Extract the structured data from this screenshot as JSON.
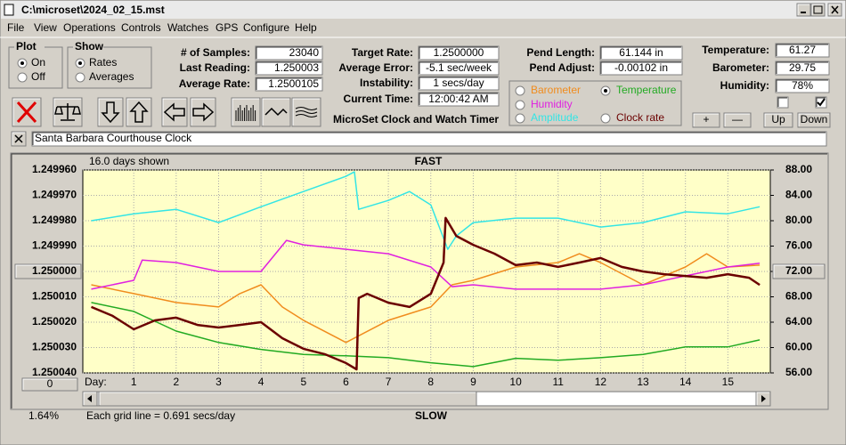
{
  "window": {
    "title": "C:\\microset\\2024_02_15.mst"
  },
  "menu": [
    "File",
    "View",
    "Operations",
    "Controls",
    "Watches",
    "GPS",
    "Configure",
    "Help"
  ],
  "plot_group": {
    "title": "Plot",
    "options": [
      "On",
      "Off"
    ]
  },
  "show_group": {
    "title": "Show",
    "options": [
      "Rates",
      "Averages"
    ]
  },
  "fields": [
    {
      "label": "# of Samples:",
      "value": "23040"
    },
    {
      "label": "Last Reading:",
      "value": "1.250003"
    },
    {
      "label": "Average Rate:",
      "value": "1.2500105"
    },
    {
      "label": "Target Rate:",
      "value": "1.2500000"
    },
    {
      "label": "Average Error:",
      "value": "-5.1 sec/week"
    },
    {
      "label": "Instability:",
      "value": "1 secs/day"
    },
    {
      "label": "Current Time:",
      "value": "12:00:42 AM"
    },
    {
      "label": "Pend Length:",
      "value": "61.144 in"
    },
    {
      "label": "Pend Adjust:",
      "value": "-0.00102 in"
    },
    {
      "label": "Temperature:",
      "value": "61.27"
    },
    {
      "label": "Barometer:",
      "value": "29.75"
    },
    {
      "label": "Humidity:",
      "value": "78%"
    }
  ],
  "buttons": [
    "+",
    "—",
    "Up",
    "Down"
  ],
  "app_name": "MicroSet Clock and Watch Timer",
  "clock_name": "Santa Barbara Courthouse Clock",
  "chart_data": {
    "type": "line",
    "title": "FAST",
    "bottom_label": "SLOW",
    "days_shown": "16.0 days shown",
    "x_label": "Day:",
    "grid_note": "Each grid line = 0.691 secs/day",
    "status": "1.64%",
    "scroll_button": "0",
    "grid": true,
    "background": "#ffffc8",
    "xlim": [
      -0.2,
      16.0
    ],
    "xticks": [
      1,
      2,
      3,
      4,
      5,
      6,
      7,
      8,
      9,
      10,
      11,
      12,
      13,
      14,
      15
    ],
    "ylim": [
      1.25004,
      1.24996
    ],
    "yticks": [
      {
        "value": 1.24996,
        "label": "1.249960"
      },
      {
        "value": 1.24997,
        "label": "1.249970"
      },
      {
        "value": 1.24998,
        "label": "1.249980"
      },
      {
        "value": 1.24999,
        "label": "1.249990"
      },
      {
        "value": 1.25,
        "label": "1.250000"
      },
      {
        "value": 1.25001,
        "label": "1.250010"
      },
      {
        "value": 1.25002,
        "label": "1.250020"
      },
      {
        "value": 1.25003,
        "label": "1.250030"
      },
      {
        "value": 1.25004,
        "label": "1.250040"
      }
    ],
    "y2lim": [
      56,
      88
    ],
    "y2ticks": [
      {
        "value": 88,
        "label": "88.00"
      },
      {
        "value": 84,
        "label": "84.00"
      },
      {
        "value": 80,
        "label": "80.00"
      },
      {
        "value": 76,
        "label": "76.00"
      },
      {
        "value": 72,
        "label": "72.00"
      },
      {
        "value": 68,
        "label": "68.00"
      },
      {
        "value": 64,
        "label": "64.00"
      },
      {
        "value": 60,
        "label": "60.00"
      },
      {
        "value": 56,
        "label": "56.00"
      }
    ],
    "series": [
      {
        "name": "Barometer",
        "color": "#f08c1e",
        "axis": "y2",
        "x": [
          0,
          1,
          2,
          3,
          3.5,
          4,
          4.5,
          5,
          6,
          7,
          8,
          8.5,
          9,
          10,
          11,
          11.5,
          12,
          13,
          14,
          14.5,
          15,
          15.75
        ],
        "values": [
          69.9,
          68.5,
          67.1,
          66.4,
          68.5,
          69.9,
          66.4,
          64.3,
          60.8,
          64.3,
          66.4,
          69.9,
          70.6,
          72.7,
          73.4,
          74.8,
          73.4,
          69.9,
          72.7,
          74.8,
          72.7,
          73.0
        ]
      },
      {
        "name": "Temperature",
        "color": "#22aa22",
        "axis": "y2",
        "x": [
          0,
          1,
          2,
          3,
          4,
          5,
          6,
          7,
          8,
          9,
          10,
          11,
          12,
          13,
          14,
          15,
          15.75
        ],
        "values": [
          67.1,
          65.7,
          62.6,
          60.8,
          59.7,
          58.9,
          58.7,
          58.4,
          57.6,
          57.0,
          58.3,
          58.0,
          58.4,
          58.9,
          60.1,
          60.1,
          61.2
        ]
      },
      {
        "name": "Humidity",
        "color": "#e020e0",
        "axis": "y2",
        "x": [
          0,
          1,
          1.2,
          2,
          3,
          4,
          4.6,
          5,
          6,
          7,
          8,
          8.5,
          9,
          10,
          11,
          12,
          13,
          14,
          15,
          15.75
        ],
        "values": [
          69.2,
          70.6,
          73.8,
          73.4,
          72.0,
          72.0,
          76.9,
          76.2,
          75.5,
          74.8,
          72.7,
          69.6,
          69.9,
          69.2,
          69.2,
          69.2,
          69.9,
          71.3,
          72.7,
          73.3
        ]
      },
      {
        "name": "Amplitude",
        "color": "#33e5e5",
        "axis": "y2",
        "x": [
          0,
          1,
          2,
          3,
          4,
          5,
          6,
          6.2,
          6.3,
          7,
          7.5,
          8,
          8.4,
          8.6,
          9,
          10,
          11,
          12,
          13,
          14,
          15,
          15.75
        ],
        "values": [
          80.0,
          81.1,
          81.8,
          79.7,
          82.2,
          84.6,
          87.0,
          87.7,
          81.8,
          83.2,
          84.6,
          82.5,
          75.5,
          77.6,
          79.7,
          80.4,
          80.4,
          79.0,
          79.7,
          81.4,
          81.1,
          82.2
        ]
      },
      {
        "name": "Clock rate",
        "color": "#6b0000",
        "x": [
          0,
          0.5,
          1,
          1.5,
          2,
          2.5,
          3,
          3.5,
          4,
          4.5,
          5,
          5.5,
          6,
          6.25,
          6.3,
          6.5,
          7,
          7.5,
          8,
          8.3,
          8.35,
          8.6,
          9,
          9.5,
          10,
          10.5,
          11,
          11.5,
          12,
          12.5,
          13,
          13.5,
          14,
          14.5,
          15,
          15.5,
          15.75
        ],
        "values": [
          1.250014,
          1.2500175,
          1.2500228,
          1.2500193,
          1.2500182,
          1.2500211,
          1.2500221,
          1.2500211,
          1.25002,
          1.2500263,
          1.2500305,
          1.2500326,
          1.2500361,
          1.2500386,
          1.2500105,
          1.2500088,
          1.2500123,
          1.250014,
          1.2500088,
          1.2499965,
          1.2499789,
          1.249986,
          1.2499895,
          1.249993,
          1.2499975,
          1.2499965,
          1.2499982,
          1.2499965,
          1.2499947,
          1.2499982,
          1.25,
          1.2500011,
          1.2500018,
          1.2500025,
          1.2500011,
          1.2500025,
          1.2500053
        ]
      }
    ]
  }
}
